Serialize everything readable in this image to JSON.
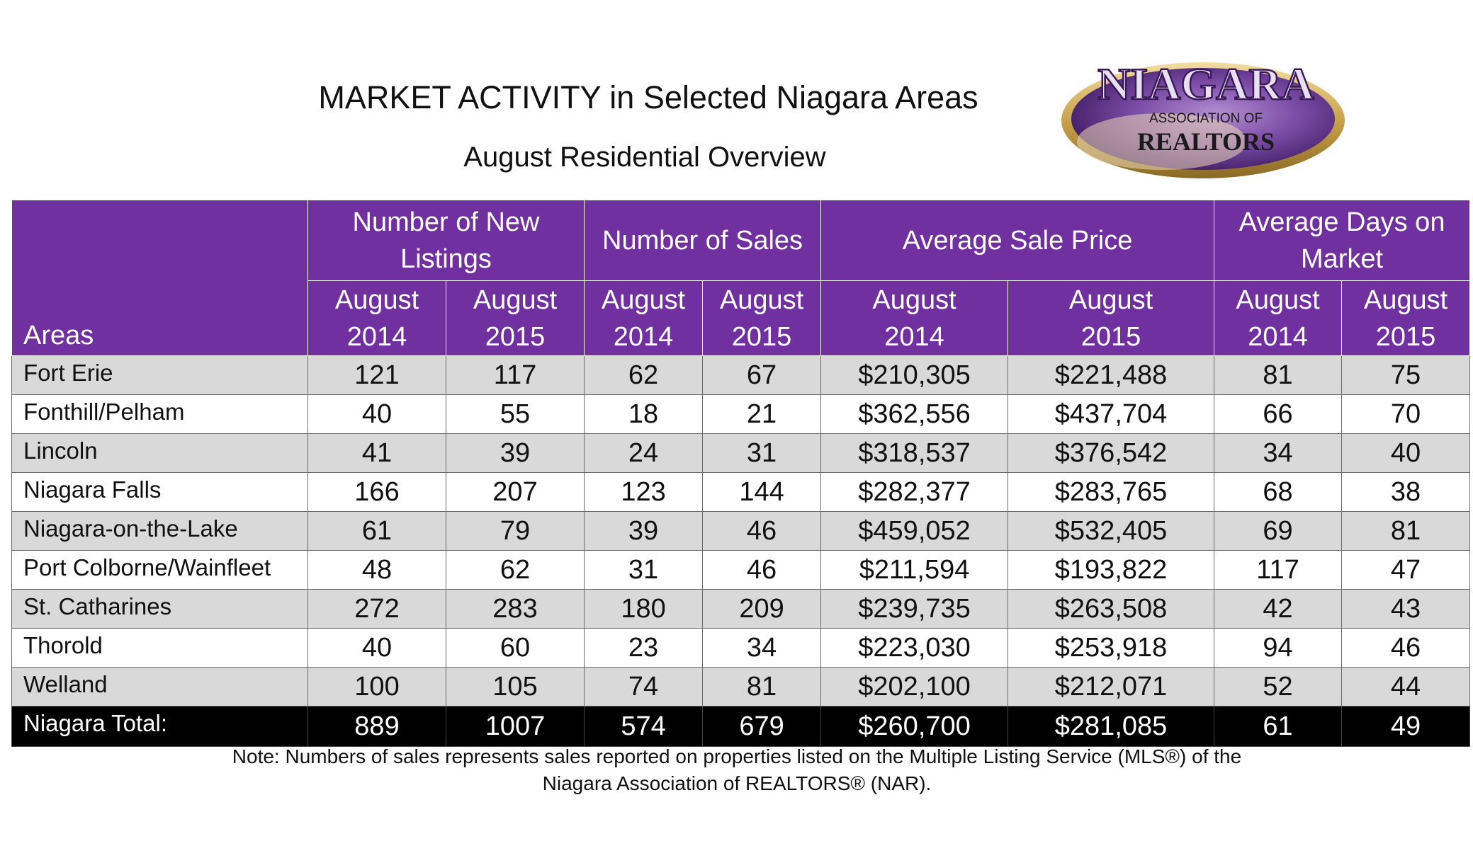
{
  "title": "MARKET ACTIVITY in Selected Niagara Areas",
  "subtitle": "August Residential Overview",
  "logo": {
    "name_text": "NIAGARA",
    "line2": "ASSOCIATION OF",
    "line3": "REALTORS",
    "colors": {
      "purple": "#5b2a86",
      "gold": "#c9a24a"
    }
  },
  "colors": {
    "header_bg": "#7030a0",
    "row_alt": "#d9d9d9",
    "total_bg": "#000000"
  },
  "table": {
    "groups": {
      "listings": "Number of New Listings",
      "sales": "Number of Sales",
      "price": "Average Sale Price",
      "days": "Average Days on Market"
    },
    "areas_header": "Areas",
    "sub_month": "August",
    "year_a": "2014",
    "year_b": "2015",
    "rows": [
      {
        "area": "Fort Erie",
        "values": [
          "121",
          "117",
          "62",
          "67",
          "$210,305",
          "$221,488",
          "81",
          "75"
        ]
      },
      {
        "area": "Fonthill/Pelham",
        "values": [
          "40",
          "55",
          "18",
          "21",
          "$362,556",
          "$437,704",
          "66",
          "70"
        ]
      },
      {
        "area": "Lincoln",
        "values": [
          "41",
          "39",
          "24",
          "31",
          "$318,537",
          "$376,542",
          "34",
          "40"
        ]
      },
      {
        "area": "Niagara Falls",
        "values": [
          "166",
          "207",
          "123",
          "144",
          "$282,377",
          "$283,765",
          "68",
          "38"
        ]
      },
      {
        "area": "Niagara-on-the-Lake",
        "values": [
          "61",
          "79",
          "39",
          "46",
          "$459,052",
          "$532,405",
          "69",
          "81"
        ]
      },
      {
        "area": "Port Colborne/Wainfleet",
        "values": [
          "48",
          "62",
          "31",
          "46",
          "$211,594",
          "$193,822",
          "117",
          "47"
        ]
      },
      {
        "area": "St. Catharines",
        "values": [
          "272",
          "283",
          "180",
          "209",
          "$239,735",
          "$263,508",
          "42",
          "43"
        ]
      },
      {
        "area": "Thorold",
        "values": [
          "40",
          "60",
          "23",
          "34",
          "$223,030",
          "$253,918",
          "94",
          "46"
        ]
      },
      {
        "area": "Welland",
        "values": [
          "100",
          "105",
          "74",
          "81",
          "$202,100",
          "$212,071",
          "52",
          "44"
        ]
      }
    ],
    "total": {
      "area": "Niagara Total:",
      "values": [
        "889",
        "1007",
        "574",
        "679",
        "$260,700",
        "$281,085",
        "61",
        "49"
      ]
    }
  },
  "note": {
    "line1": "Note: Numbers of sales represents sales reported on properties listed on the Multiple Listing Service (MLS®) of the",
    "line2": "Niagara Association of REALTORS® (NAR)."
  }
}
